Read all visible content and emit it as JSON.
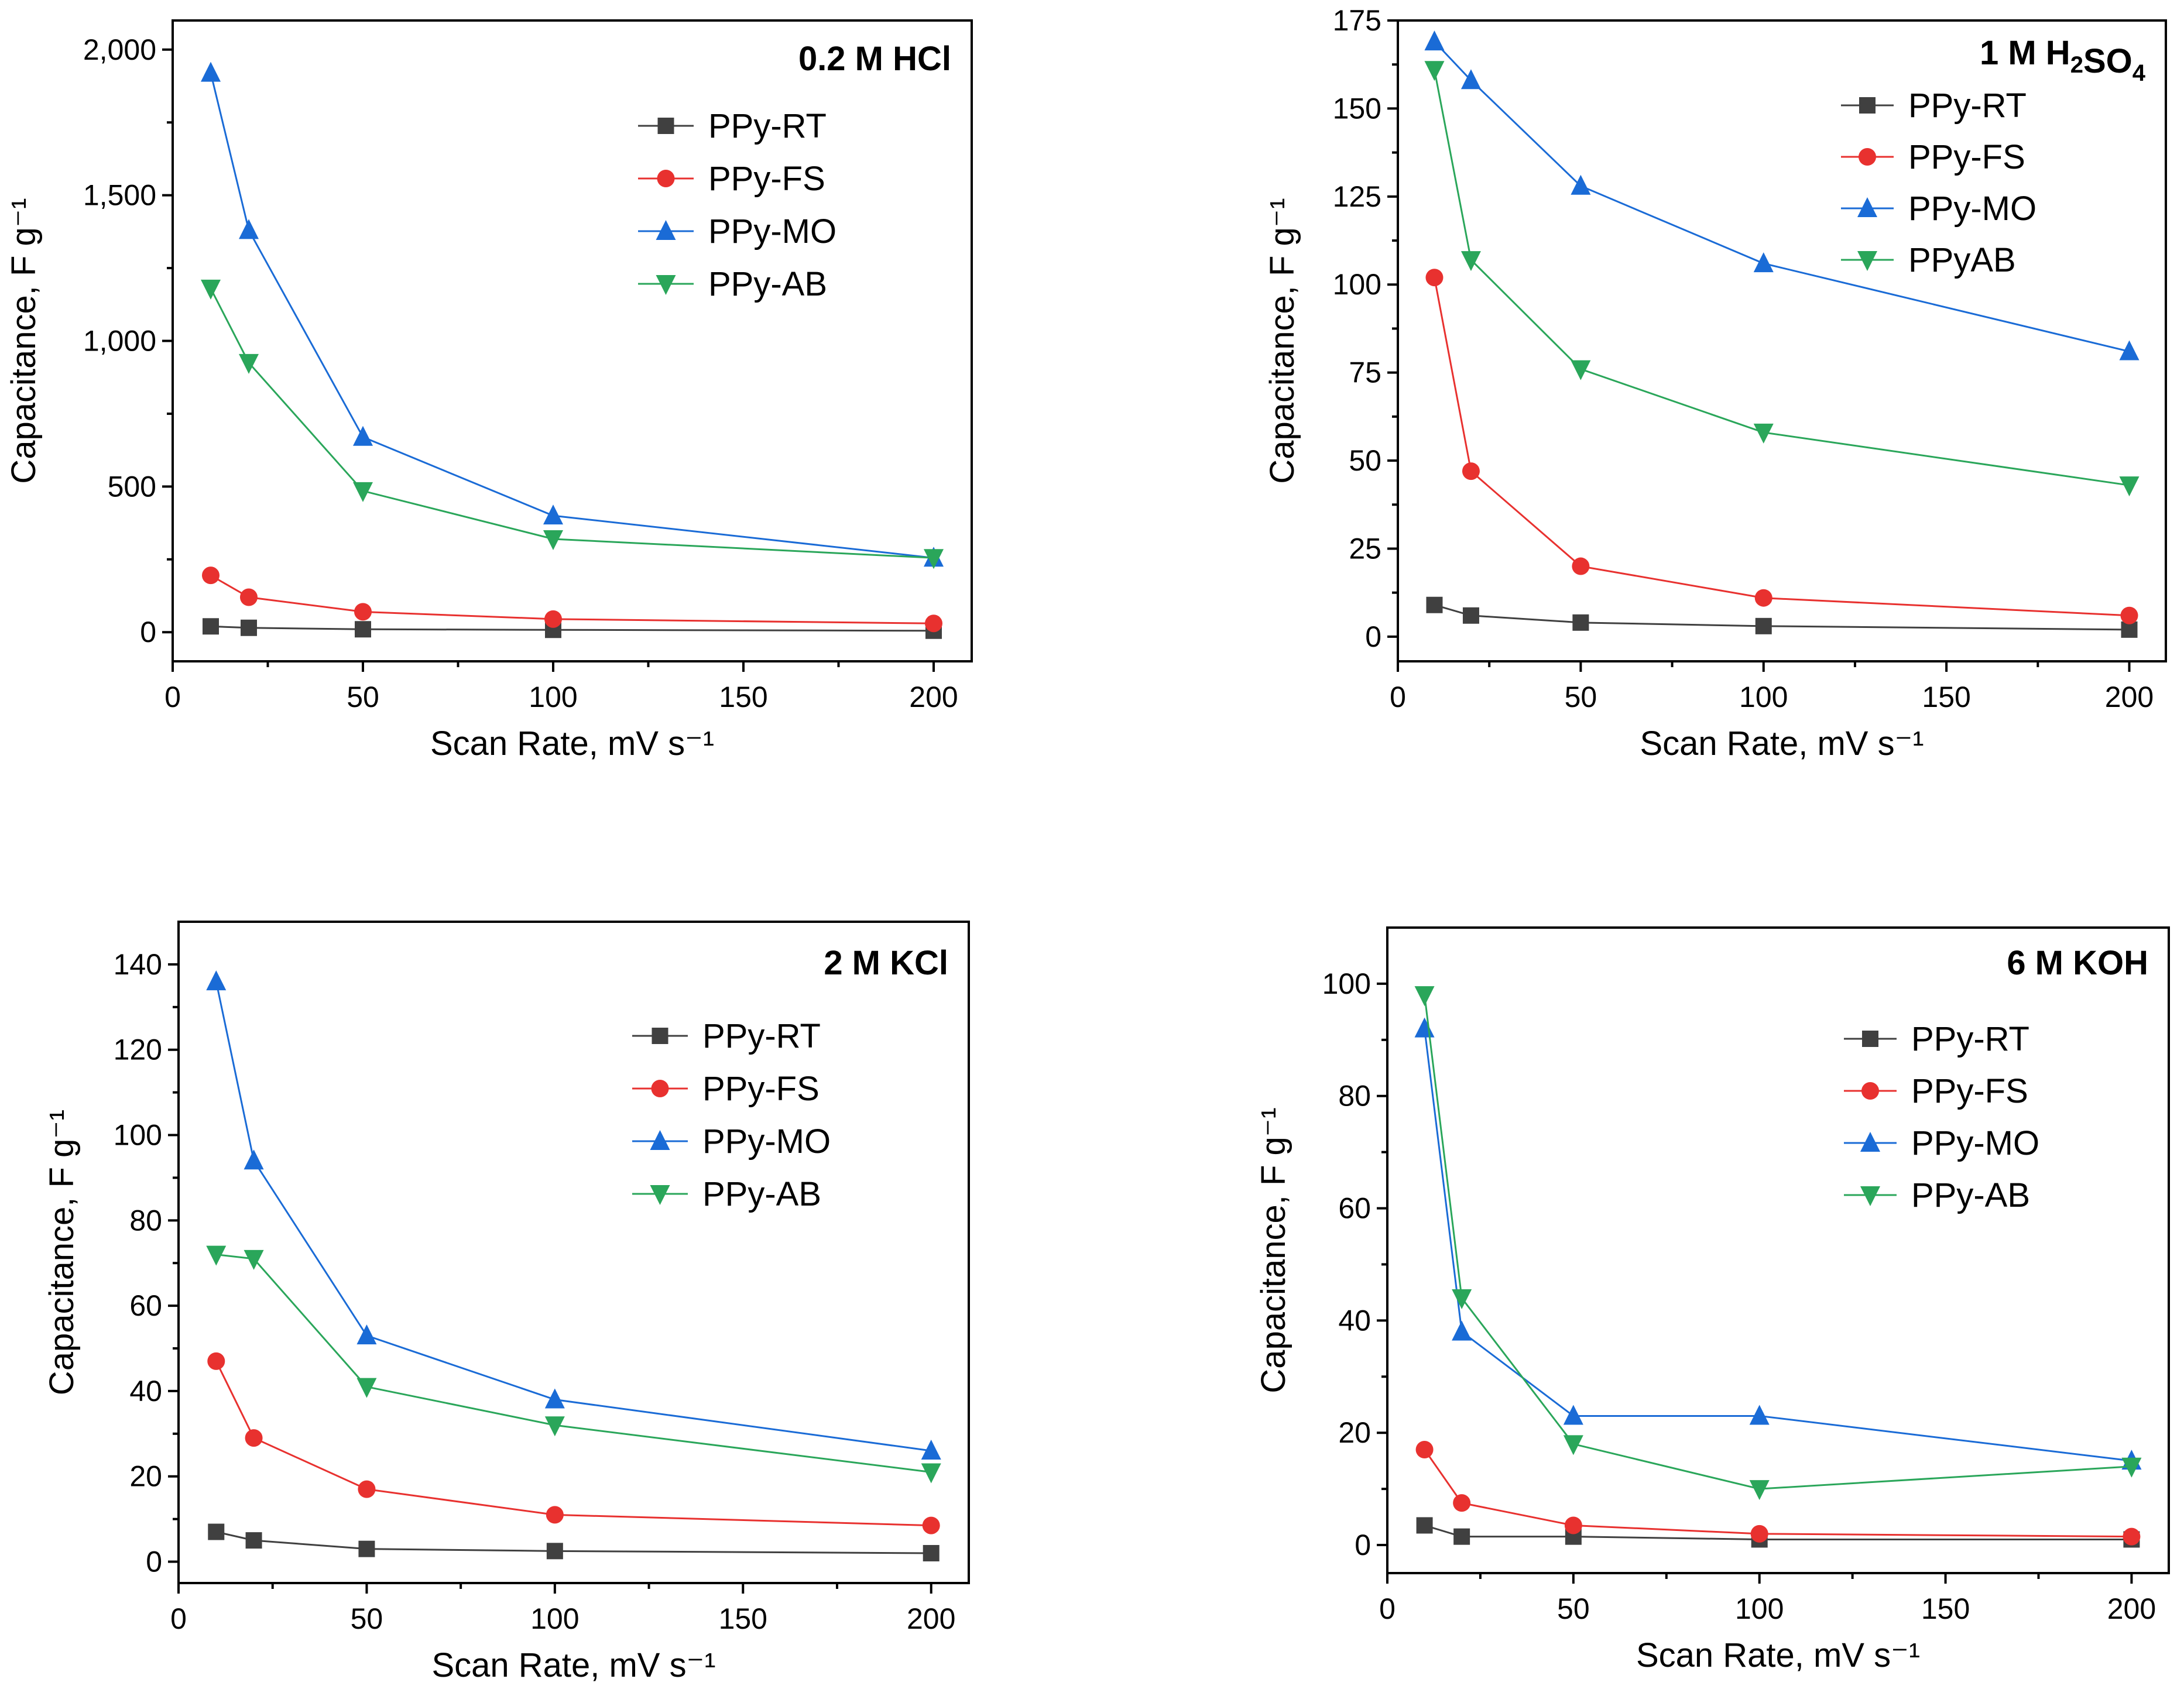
{
  "chart_data": [
    {
      "type": "line",
      "title": "0.2 M HCl",
      "xlabel": "Scan Rate, mV s⁻¹",
      "ylabel": "Capacitance, F g⁻¹",
      "xlim": [
        0,
        210
      ],
      "ylim": [
        -100,
        2100
      ],
      "xticks": [
        0,
        50,
        100,
        150,
        200
      ],
      "yticks": [
        0,
        500,
        1000,
        1500,
        2000
      ],
      "xtick_labels": [
        "0",
        "50",
        "100",
        "150",
        "200"
      ],
      "ytick_labels": [
        "0",
        "500",
        "1,000",
        "1,500",
        "2,000"
      ],
      "x": [
        10,
        20,
        50,
        100,
        200
      ],
      "series": [
        {
          "name": "PPy-RT",
          "values": [
            20,
            15,
            10,
            8,
            5
          ],
          "color": "#404040",
          "marker": "square"
        },
        {
          "name": "PPy-FS",
          "values": [
            195,
            120,
            70,
            45,
            30
          ],
          "color": "#e8312f",
          "marker": "circle"
        },
        {
          "name": "PPy-MO",
          "values": [
            1920,
            1380,
            670,
            400,
            255
          ],
          "color": "#1a6bd6",
          "marker": "triangle-up"
        },
        {
          "name": "PPy-AB",
          "values": [
            1180,
            925,
            485,
            320,
            255
          ],
          "color": "#2aa65a",
          "marker": "triangle-down"
        }
      ]
    },
    {
      "type": "line",
      "title": "1 M H₂SO₄",
      "xlabel": "Scan Rate, mV s⁻¹",
      "ylabel": "Capacitance, F g⁻¹",
      "xlim": [
        0,
        210
      ],
      "ylim": [
        -7,
        175
      ],
      "xticks": [
        0,
        50,
        100,
        150,
        200
      ],
      "yticks": [
        0,
        25,
        50,
        75,
        100,
        125,
        150,
        175
      ],
      "xtick_labels": [
        "0",
        "50",
        "100",
        "150",
        "200"
      ],
      "ytick_labels": [
        "0",
        "25",
        "50",
        "75",
        "100",
        "125",
        "150",
        "175"
      ],
      "x": [
        10,
        20,
        50,
        100,
        200
      ],
      "series": [
        {
          "name": "PPy-RT",
          "values": [
            9,
            6,
            4,
            3,
            2
          ],
          "color": "#404040",
          "marker": "square"
        },
        {
          "name": "PPy-FS",
          "values": [
            102,
            47,
            20,
            11,
            6
          ],
          "color": "#e8312f",
          "marker": "circle"
        },
        {
          "name": "PPy-MO",
          "values": [
            169,
            158,
            128,
            106,
            81
          ],
          "color": "#1a6bd6",
          "marker": "triangle-up"
        },
        {
          "name": "PPyAB",
          "values": [
            161,
            107,
            76,
            58,
            43
          ],
          "color": "#2aa65a",
          "marker": "triangle-down"
        }
      ]
    },
    {
      "type": "line",
      "title": "2 M KCl",
      "xlabel": "Scan Rate, mV s⁻¹",
      "ylabel": "Capacitance, F g⁻¹",
      "xlim": [
        0,
        210
      ],
      "ylim": [
        -5,
        150
      ],
      "xticks": [
        0,
        50,
        100,
        150,
        200
      ],
      "yticks": [
        0,
        20,
        40,
        60,
        80,
        100,
        120,
        140
      ],
      "xtick_labels": [
        "0",
        "50",
        "100",
        "150",
        "200"
      ],
      "ytick_labels": [
        "0",
        "20",
        "40",
        "60",
        "80",
        "100",
        "120",
        "140"
      ],
      "x": [
        10,
        20,
        50,
        100,
        200
      ],
      "series": [
        {
          "name": "PPy-RT",
          "values": [
            7,
            5,
            3,
            2.5,
            2
          ],
          "color": "#404040",
          "marker": "square"
        },
        {
          "name": "PPy-FS",
          "values": [
            47,
            29,
            17,
            11,
            8.5
          ],
          "color": "#e8312f",
          "marker": "circle"
        },
        {
          "name": "PPy-MO",
          "values": [
            136,
            94,
            53,
            38,
            26
          ],
          "color": "#1a6bd6",
          "marker": "triangle-up"
        },
        {
          "name": "PPy-AB",
          "values": [
            72,
            71,
            41,
            32,
            21
          ],
          "color": "#2aa65a",
          "marker": "triangle-down"
        }
      ]
    },
    {
      "type": "line",
      "title": "6 M KOH",
      "xlabel": "Scan Rate, mV s⁻¹",
      "ylabel": "Capacitance, F g⁻¹",
      "xlim": [
        0,
        210
      ],
      "ylim": [
        -5,
        110
      ],
      "xticks": [
        0,
        50,
        100,
        150,
        200
      ],
      "yticks": [
        0,
        20,
        40,
        60,
        80,
        100
      ],
      "xtick_labels": [
        "0",
        "50",
        "100",
        "150",
        "200"
      ],
      "ytick_labels": [
        "0",
        "20",
        "40",
        "60",
        "80",
        "100"
      ],
      "x": [
        10,
        20,
        50,
        100,
        200
      ],
      "series": [
        {
          "name": "PPy-RT",
          "values": [
            3.5,
            1.5,
            1.5,
            1,
            1
          ],
          "color": "#404040",
          "marker": "square"
        },
        {
          "name": "PPy-FS",
          "values": [
            17,
            7.5,
            3.5,
            2,
            1.5
          ],
          "color": "#e8312f",
          "marker": "circle"
        },
        {
          "name": "PPy-MO",
          "values": [
            92,
            38,
            23,
            23,
            15
          ],
          "color": "#1a6bd6",
          "marker": "triangle-up"
        },
        {
          "name": "PPy-AB",
          "values": [
            98,
            44,
            18,
            10,
            14
          ],
          "color": "#2aa65a",
          "marker": "triangle-down"
        }
      ]
    }
  ]
}
